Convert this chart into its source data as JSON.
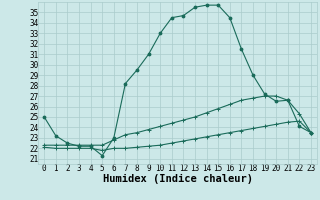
{
  "title": "",
  "xlabel": "Humidex (Indice chaleur)",
  "ylabel": "",
  "bg_color": "#cce8e8",
  "grid_color": "#aacccc",
  "line_color": "#1a6b5a",
  "xlim": [
    -0.5,
    23.5
  ],
  "ylim": [
    20.5,
    36.0
  ],
  "yticks": [
    21,
    22,
    23,
    24,
    25,
    26,
    27,
    28,
    29,
    30,
    31,
    32,
    33,
    34,
    35
  ],
  "xticks": [
    0,
    1,
    2,
    3,
    4,
    5,
    6,
    7,
    8,
    9,
    10,
    11,
    12,
    13,
    14,
    15,
    16,
    17,
    18,
    19,
    20,
    21,
    22,
    23
  ],
  "x_main": [
    0,
    1,
    2,
    3,
    4,
    5,
    6,
    7,
    8,
    9,
    10,
    11,
    12,
    13,
    14,
    15,
    16,
    17,
    18,
    19,
    20,
    21,
    22,
    23
  ],
  "y_main": [
    25.0,
    23.2,
    22.5,
    22.2,
    22.2,
    21.3,
    23.0,
    28.2,
    29.5,
    31.0,
    33.0,
    34.5,
    34.7,
    35.5,
    35.7,
    35.7,
    34.5,
    31.5,
    29.0,
    27.2,
    26.5,
    26.6,
    24.1,
    23.5
  ],
  "x_line2": [
    0,
    1,
    2,
    3,
    4,
    5,
    6,
    7,
    8,
    9,
    10,
    11,
    12,
    13,
    14,
    15,
    16,
    17,
    18,
    19,
    20,
    21,
    22,
    23
  ],
  "y_line2": [
    22.3,
    22.3,
    22.3,
    22.3,
    22.3,
    22.3,
    22.8,
    23.3,
    23.5,
    23.8,
    24.1,
    24.4,
    24.7,
    25.0,
    25.4,
    25.8,
    26.2,
    26.6,
    26.8,
    27.0,
    27.0,
    26.6,
    25.3,
    23.5
  ],
  "x_line3": [
    0,
    1,
    2,
    3,
    4,
    5,
    6,
    7,
    8,
    9,
    10,
    11,
    12,
    13,
    14,
    15,
    16,
    17,
    18,
    19,
    20,
    21,
    22,
    23
  ],
  "y_line3": [
    22.1,
    22.0,
    22.0,
    22.0,
    22.0,
    21.8,
    22.0,
    22.0,
    22.1,
    22.2,
    22.3,
    22.5,
    22.7,
    22.9,
    23.1,
    23.3,
    23.5,
    23.7,
    23.9,
    24.1,
    24.3,
    24.5,
    24.6,
    23.5
  ],
  "font_family": "monospace",
  "tick_fontsize": 5.5,
  "xlabel_fontsize": 7.5
}
